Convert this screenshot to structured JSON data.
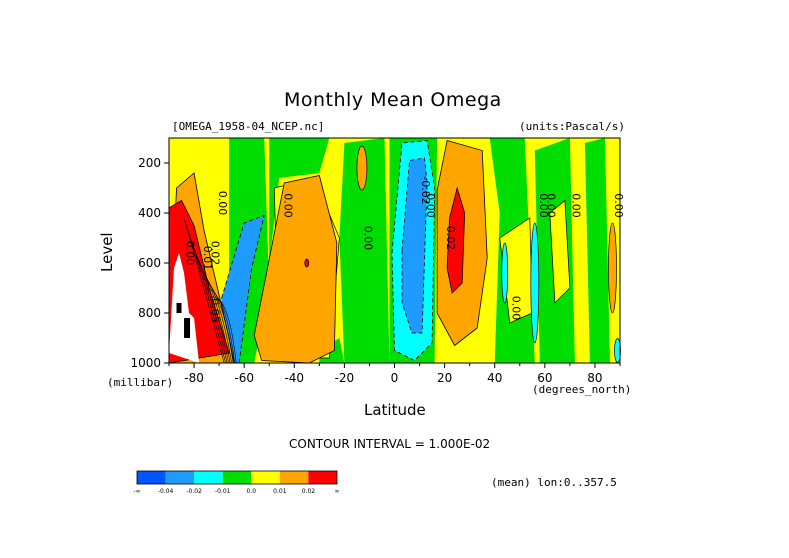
{
  "header": {
    "title": "Monthly Mean Omega",
    "file": "[OMEGA_1958-04_NCEP.nc]",
    "units": "(units:Pascal/s)"
  },
  "footer": {
    "contour_interval": "CONTOUR INTERVAL = 1.000E-02",
    "mean_note": "(mean) lon:0..357.5"
  },
  "chart_data": {
    "type": "heatmap",
    "title": "Monthly Mean Omega",
    "xlabel": "Latitude",
    "ylabel": "Level",
    "x_units": "(degrees_north)",
    "y_units": "(millibar)",
    "xlim": [
      -90,
      90
    ],
    "ylim": [
      1000,
      100
    ],
    "x_ticks": [
      "-80",
      "-60",
      "-40",
      "-20",
      "0",
      "20",
      "40",
      "60",
      "80"
    ],
    "x_tick_values": [
      -80,
      -60,
      -40,
      -20,
      0,
      20,
      40,
      60,
      80
    ],
    "y_ticks": [
      "200",
      "400",
      "600",
      "800",
      "1000"
    ],
    "y_tick_values": [
      200,
      400,
      600,
      800,
      1000
    ],
    "colorbar": {
      "labels": [
        "-∞",
        "-0.04",
        "-0.02",
        "-0.01",
        "0.0",
        "0.01",
        "0.02",
        "∞"
      ],
      "colors": [
        "#0055ff",
        "#1e9bff",
        "#00ffff",
        "#00dd00",
        "#ffff00",
        "#ffa500",
        "#ff0000"
      ]
    },
    "contour_labels": [
      {
        "text": "0.00",
        "lat": -83,
        "level": 560
      },
      {
        "text": "0.01",
        "lat": -76,
        "level": 580
      },
      {
        "text": "0.02",
        "lat": -73,
        "level": 560
      },
      {
        "text": "0.05",
        "lat": -73,
        "level": 790
      },
      {
        "text": "0.00",
        "lat": -70,
        "level": 360
      },
      {
        "text": "0.00",
        "lat": -44,
        "level": 370
      },
      {
        "text": "0.00",
        "lat": -12,
        "level": 500
      },
      {
        "text": "-0.02",
        "lat": 11,
        "level": 310
      },
      {
        "text": "0.00",
        "lat": 13,
        "level": 370
      },
      {
        "text": "0.02",
        "lat": 21,
        "level": 500
      },
      {
        "text": "0.00",
        "lat": 47,
        "level": 780
      },
      {
        "text": "0.00",
        "lat": 58,
        "level": 370
      },
      {
        "text": "0.00",
        "lat": 61,
        "level": 370
      },
      {
        "text": "0.00",
        "lat": 71,
        "level": 370
      },
      {
        "text": "0.00",
        "lat": 88,
        "level": 370
      }
    ],
    "regions": [
      {
        "value": 0.01,
        "pts": [
          [
            -56,
            890
          ],
          [
            -44,
            280
          ],
          [
            -30,
            250
          ],
          [
            -23,
            520
          ],
          [
            -24,
            950
          ],
          [
            -34,
            1000
          ],
          [
            -53,
            990
          ]
        ]
      },
      {
        "value": 0.01,
        "pts": [
          [
            17,
            310
          ],
          [
            21,
            110
          ],
          [
            35,
            150
          ],
          [
            37,
            580
          ],
          [
            33,
            860
          ],
          [
            24,
            930
          ],
          [
            17,
            800
          ]
        ]
      },
      {
        "value": 0.02,
        "pts": [
          [
            22,
            420
          ],
          [
            25,
            300
          ],
          [
            28,
            400
          ],
          [
            27,
            680
          ],
          [
            23,
            720
          ],
          [
            21,
            620
          ]
        ]
      },
      {
        "value": -0.01,
        "pts": [
          [
            -1,
            560
          ],
          [
            3,
            120
          ],
          [
            13,
            110
          ],
          [
            16,
            300
          ],
          [
            15,
            920
          ],
          [
            8,
            990
          ],
          [
            0,
            950
          ]
        ]
      },
      {
        "value": -0.02,
        "pts": [
          [
            3,
            550
          ],
          [
            6,
            190
          ],
          [
            12,
            180
          ],
          [
            13,
            280
          ],
          [
            11,
            880
          ],
          [
            7,
            880
          ],
          [
            3,
            760
          ]
        ]
      },
      {
        "value": -0.02,
        "pts": [
          [
            -69,
            740
          ],
          [
            -60,
            440
          ],
          [
            -52,
            410
          ],
          [
            -57,
            620
          ],
          [
            -62,
            1000
          ],
          [
            -68,
            1000
          ]
        ]
      },
      {
        "value": 0.01,
        "pts": [
          [
            -87,
            300
          ],
          [
            -80,
            240
          ],
          [
            -76,
            470
          ],
          [
            -66,
            900
          ],
          [
            -64,
            1000
          ],
          [
            -90,
            1000
          ]
        ]
      },
      {
        "value": 0.02,
        "pts": [
          [
            -90,
            380
          ],
          [
            -85,
            350
          ],
          [
            -80,
            450
          ],
          [
            -74,
            700
          ],
          [
            -66,
            960
          ],
          [
            -90,
            1000
          ]
        ]
      }
    ]
  }
}
